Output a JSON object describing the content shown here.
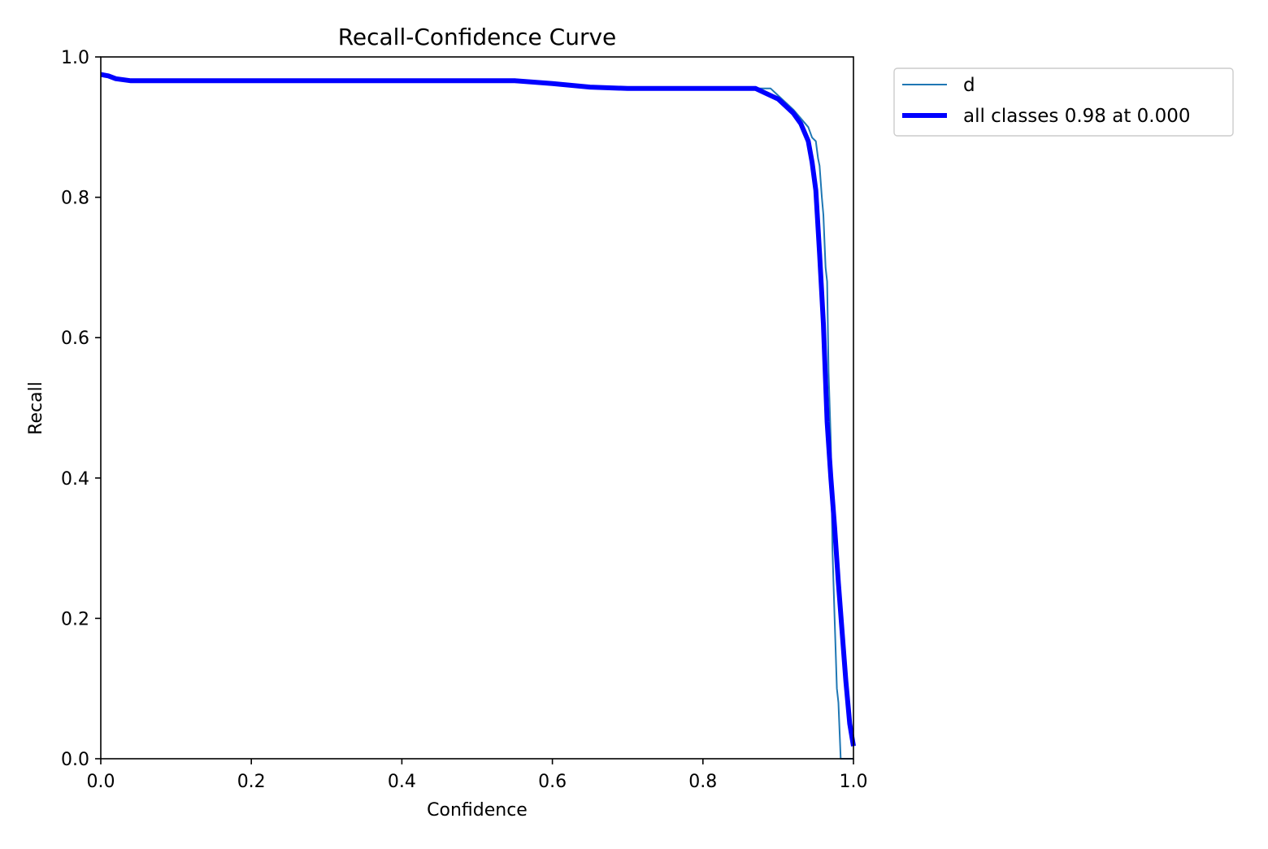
{
  "chart_data": {
    "type": "line",
    "title": "Recall-Confidence Curve",
    "xlabel": "Confidence",
    "ylabel": "Recall",
    "xlim": [
      0.0,
      1.0
    ],
    "ylim": [
      0.0,
      1.0
    ],
    "x_ticks": [
      "0.0",
      "0.2",
      "0.4",
      "0.6",
      "0.8",
      "1.0"
    ],
    "y_ticks": [
      "0.0",
      "0.2",
      "0.4",
      "0.6",
      "0.8",
      "1.0"
    ],
    "grid": false,
    "legend_position": "outside-top-right",
    "series": [
      {
        "name": "d",
        "color": "#1f77b4",
        "x": [
          0.0,
          0.01,
          0.02,
          0.04,
          0.1,
          0.2,
          0.3,
          0.4,
          0.5,
          0.55,
          0.6,
          0.65,
          0.7,
          0.75,
          0.8,
          0.85,
          0.89,
          0.9,
          0.92,
          0.94,
          0.945,
          0.95,
          0.953,
          0.955,
          0.958,
          0.96,
          0.963,
          0.965,
          0.967,
          0.97,
          0.972,
          0.975,
          0.978,
          0.98,
          0.983,
          0.985,
          1.0
        ],
        "y": [
          0.975,
          0.973,
          0.968,
          0.966,
          0.966,
          0.966,
          0.966,
          0.966,
          0.966,
          0.966,
          0.962,
          0.957,
          0.955,
          0.955,
          0.955,
          0.955,
          0.955,
          0.945,
          0.925,
          0.9,
          0.885,
          0.88,
          0.855,
          0.845,
          0.8,
          0.775,
          0.7,
          0.68,
          0.55,
          0.45,
          0.3,
          0.2,
          0.1,
          0.08,
          0.0,
          0.0,
          0.0
        ]
      },
      {
        "name": "all classes 0.98 at 0.000",
        "color": "#0000ff",
        "x": [
          0.0,
          0.01,
          0.02,
          0.04,
          0.1,
          0.2,
          0.3,
          0.4,
          0.5,
          0.55,
          0.6,
          0.65,
          0.7,
          0.75,
          0.8,
          0.85,
          0.87,
          0.88,
          0.9,
          0.91,
          0.92,
          0.93,
          0.94,
          0.945,
          0.95,
          0.955,
          0.96,
          0.965,
          0.97,
          0.975,
          0.98,
          0.985,
          0.99,
          0.995,
          1.0
        ],
        "y": [
          0.975,
          0.973,
          0.969,
          0.966,
          0.966,
          0.966,
          0.966,
          0.966,
          0.966,
          0.966,
          0.962,
          0.957,
          0.955,
          0.955,
          0.955,
          0.955,
          0.955,
          0.95,
          0.94,
          0.93,
          0.92,
          0.905,
          0.88,
          0.85,
          0.81,
          0.72,
          0.62,
          0.48,
          0.4,
          0.33,
          0.25,
          0.18,
          0.11,
          0.05,
          0.018
        ]
      }
    ]
  }
}
